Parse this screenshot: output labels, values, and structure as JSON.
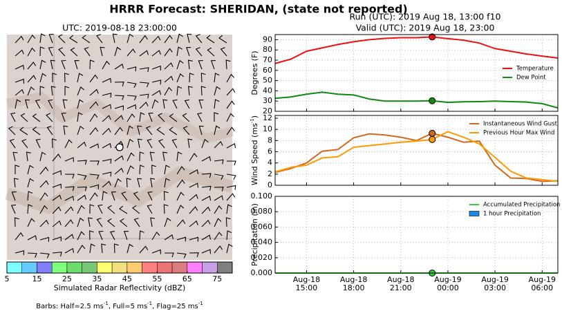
{
  "title": "HRRR Forecast: SHERIDAN, (state not reported)",
  "run": "Run (UTC): 2019 Aug 18, 13:00 f10",
  "valid": "Valid (UTC): 2019 Aug 18, 23:00",
  "map": {
    "title": "UTC: 2019-08-18 23:00:00"
  },
  "colorbar": {
    "bounds": [
      5,
      10,
      15,
      20,
      25,
      30,
      35,
      40,
      45,
      50,
      55,
      60,
      65,
      70,
      75,
      80
    ],
    "colors": [
      "#80ffff",
      "#66ccff",
      "#8080ff",
      "#80ff80",
      "#6cdc6c",
      "#78c878",
      "#ffff70",
      "#f2df80",
      "#ffcc70",
      "#ff8080",
      "#ec7474",
      "#dc7c7c",
      "#ff80ff",
      "#c8a0e6",
      "#808080"
    ],
    "ticks": [
      5,
      15,
      25,
      35,
      45,
      55,
      65,
      75
    ],
    "label": "Simulated Radar Reflectivity (dBZ)"
  },
  "barbs_note": [
    "Barbs: Half=2.5 ms",
    "-1",
    ", Full=5 ms",
    "-1",
    ", Flag=25 ms",
    "-1"
  ],
  "chart_data": [
    {
      "type": "line",
      "x": [
        "Aug-18 13:00",
        "Aug-18 14:00",
        "Aug-18 15:00",
        "Aug-18 16:00",
        "Aug-18 17:00",
        "Aug-18 18:00",
        "Aug-18 19:00",
        "Aug-18 20:00",
        "Aug-18 21:00",
        "Aug-18 22:00",
        "Aug-18 23:00",
        "Aug-19 00:00",
        "Aug-19 01:00",
        "Aug-19 02:00",
        "Aug-19 03:00",
        "Aug-19 04:00",
        "Aug-19 05:00",
        "Aug-19 06:00",
        "Aug-19 07:00"
      ],
      "xlim": [
        "Aug-18 13:00",
        "Aug-19 07:00"
      ],
      "xticks": [
        "Aug-18 15:00",
        "Aug-18 18:00",
        "Aug-18 21:00",
        "Aug-19 00:00",
        "Aug-19 03:00",
        "Aug-19 06:00"
      ],
      "ylabel": [
        "Degrees (F)"
      ],
      "ylim": [
        20,
        95
      ],
      "yticks": [
        20,
        30,
        40,
        50,
        60,
        70,
        80,
        90
      ],
      "grid": true,
      "legend": "right",
      "marker_x": "Aug-18 23:00",
      "series": [
        {
          "name": "Temperature",
          "color": "#ee1111",
          "values": [
            66.7,
            71,
            78.7,
            82,
            85.3,
            88,
            90,
            91.3,
            92,
            92,
            92.7,
            91,
            89.5,
            86.7,
            81.3,
            78.7,
            76,
            74,
            72
          ]
        },
        {
          "name": "Dew Point",
          "color": "#118811",
          "values": [
            32.7,
            34,
            36.7,
            38.7,
            36.7,
            36,
            32,
            30,
            30,
            30,
            30.3,
            28.7,
            29.3,
            29.5,
            30,
            29.5,
            29,
            27.5,
            23.3
          ]
        }
      ]
    },
    {
      "type": "line",
      "x": [
        "Aug-18 13:00",
        "Aug-18 14:00",
        "Aug-18 15:00",
        "Aug-18 16:00",
        "Aug-18 17:00",
        "Aug-18 18:00",
        "Aug-18 19:00",
        "Aug-18 20:00",
        "Aug-18 21:00",
        "Aug-18 22:00",
        "Aug-18 23:00",
        "Aug-19 00:00",
        "Aug-19 01:00",
        "Aug-19 02:00",
        "Aug-19 03:00",
        "Aug-19 04:00",
        "Aug-19 05:00",
        "Aug-19 06:00",
        "Aug-19 07:00"
      ],
      "xlim": [
        "Aug-18 13:00",
        "Aug-19 07:00"
      ],
      "xticks": [
        "Aug-18 15:00",
        "Aug-18 18:00",
        "Aug-18 21:00",
        "Aug-19 00:00",
        "Aug-19 03:00",
        "Aug-19 06:00"
      ],
      "ylabel": [
        "Wind Speed (ms",
        "-1",
        ")"
      ],
      "ylim": [
        0,
        12.5
      ],
      "yticks": [
        0,
        2,
        4,
        6,
        8,
        10,
        12
      ],
      "grid": true,
      "legend": "upper right",
      "marker_x": "Aug-18 23:00",
      "series": [
        {
          "name": "Instantaneous Wind Gust",
          "color": "#d2691e",
          "values": [
            2.3,
            3,
            4,
            6.1,
            6.4,
            8.5,
            9.2,
            9,
            8.6,
            8,
            9.3,
            8.6,
            7.7,
            7.9,
            3.6,
            1.3,
            1.2,
            0.7,
            0.8
          ]
        },
        {
          "name": "Previous Hour Max Wind",
          "color": "#ff9900",
          "values": [
            2.4,
            3.2,
            3.6,
            4.9,
            5.1,
            6.8,
            7.1,
            7.4,
            7.7,
            7.9,
            8.2,
            9.6,
            8.6,
            7.4,
            5,
            2.5,
            1.3,
            1,
            0.7
          ]
        }
      ]
    },
    {
      "type": "line",
      "x": [
        "Aug-18 13:00",
        "Aug-18 14:00",
        "Aug-18 15:00",
        "Aug-18 16:00",
        "Aug-18 17:00",
        "Aug-18 18:00",
        "Aug-18 19:00",
        "Aug-18 20:00",
        "Aug-18 21:00",
        "Aug-18 22:00",
        "Aug-18 23:00",
        "Aug-19 00:00",
        "Aug-19 01:00",
        "Aug-19 02:00",
        "Aug-19 03:00",
        "Aug-19 04:00",
        "Aug-19 05:00",
        "Aug-19 06:00",
        "Aug-19 07:00"
      ],
      "xlim": [
        "Aug-18 13:00",
        "Aug-19 07:00"
      ],
      "xticks": [
        "Aug-18 15:00",
        "Aug-18 18:00",
        "Aug-18 21:00",
        "Aug-19 00:00",
        "Aug-19 03:00",
        "Aug-19 06:00"
      ],
      "ylabel": [
        "Precipitation (in)"
      ],
      "ylim": [
        0,
        0.1
      ],
      "yticks": [
        {
          "value": 0,
          "label": "0.000"
        },
        {
          "value": 0.02,
          "label": "0.020"
        },
        {
          "value": 0.04,
          "label": "0.040"
        },
        {
          "value": 0.06,
          "label": "0.060"
        },
        {
          "value": 0.08,
          "label": "0.080"
        },
        {
          "value": 0.1,
          "label": "0.100"
        }
      ],
      "grid": true,
      "legend": "upper right",
      "marker_x": "Aug-18 23:00",
      "series": [
        {
          "name": "Accumulated Precipitation",
          "color": "#33cc33",
          "values": [
            0,
            0,
            0,
            0,
            0,
            0,
            0,
            0,
            0,
            0,
            0,
            0,
            0,
            0,
            0,
            0,
            0,
            0,
            0
          ]
        },
        {
          "name": "1 hour Precipitation",
          "type": "bar",
          "color": "#1e88e5",
          "values": [
            0,
            0,
            0,
            0,
            0,
            0,
            0,
            0,
            0,
            0,
            0,
            0,
            0,
            0,
            0,
            0,
            0,
            0,
            0
          ]
        }
      ]
    }
  ]
}
